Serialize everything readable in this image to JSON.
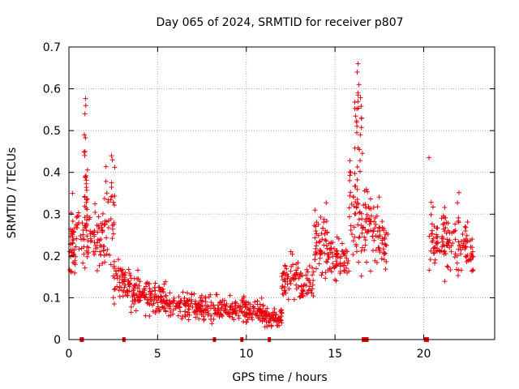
{
  "chart_data": {
    "type": "scatter",
    "title": "Day 065 of 2024, SRMTID for receiver p807",
    "xlabel": "GPS time / hours",
    "ylabel": "SRMTID / TECUs",
    "xlim": [
      0,
      24
    ],
    "ylim": [
      0,
      0.7
    ],
    "xticks": [
      0,
      5,
      10,
      15,
      20
    ],
    "yticks": [
      0,
      0.1,
      0.2,
      0.3,
      0.4,
      0.5,
      0.6,
      0.7
    ],
    "grid": true,
    "marker": "+",
    "color": "#e8000b",
    "clusters": [
      {
        "x": [
          0.0,
          0.4
        ],
        "center": 0.22,
        "spread": 0.06,
        "n": 40
      },
      {
        "x": [
          0.4,
          0.9
        ],
        "center": 0.25,
        "spread": 0.05,
        "n": 25
      },
      {
        "x": [
          0.85,
          1.05
        ],
        "center": 0.38,
        "spread": 0.15,
        "n": 28
      },
      {
        "x": [
          1.0,
          2.0
        ],
        "center": 0.24,
        "spread": 0.06,
        "n": 60
      },
      {
        "x": [
          2.0,
          2.6
        ],
        "center": 0.3,
        "spread": 0.09,
        "n": 35
      },
      {
        "x": [
          2.5,
          3.5
        ],
        "center": 0.14,
        "spread": 0.04,
        "n": 60
      },
      {
        "x": [
          3.5,
          4.6
        ],
        "center": 0.11,
        "spread": 0.035,
        "n": 70
      },
      {
        "x": [
          4.6,
          5.5
        ],
        "center": 0.1,
        "spread": 0.035,
        "n": 60
      },
      {
        "x": [
          5.5,
          7.5
        ],
        "center": 0.08,
        "spread": 0.025,
        "n": 110
      },
      {
        "x": [
          7.5,
          9.5
        ],
        "center": 0.07,
        "spread": 0.025,
        "n": 100
      },
      {
        "x": [
          9.5,
          11.0
        ],
        "center": 0.07,
        "spread": 0.025,
        "n": 90
      },
      {
        "x": [
          11.0,
          12.0
        ],
        "center": 0.05,
        "spread": 0.02,
        "n": 60
      },
      {
        "x": [
          12.0,
          13.0
        ],
        "center": 0.15,
        "spread": 0.04,
        "n": 55
      },
      {
        "x": [
          13.0,
          13.8
        ],
        "center": 0.13,
        "spread": 0.035,
        "n": 45
      },
      {
        "x": [
          13.8,
          14.6
        ],
        "center": 0.24,
        "spread": 0.07,
        "n": 55
      },
      {
        "x": [
          14.6,
          15.8
        ],
        "center": 0.19,
        "spread": 0.04,
        "n": 65
      },
      {
        "x": [
          15.8,
          16.6
        ],
        "center": 0.3,
        "spread": 0.1,
        "n": 55
      },
      {
        "x": [
          16.1,
          16.5
        ],
        "center": 0.52,
        "spread": 0.08,
        "n": 22
      },
      {
        "x": [
          16.6,
          17.5
        ],
        "center": 0.27,
        "spread": 0.07,
        "n": 55
      },
      {
        "x": [
          17.5,
          18.0
        ],
        "center": 0.24,
        "spread": 0.05,
        "n": 30
      },
      {
        "x": [
          20.3,
          21.1
        ],
        "center": 0.23,
        "spread": 0.06,
        "n": 45
      },
      {
        "x": [
          21.1,
          22.0
        ],
        "center": 0.24,
        "spread": 0.07,
        "n": 55
      },
      {
        "x": [
          22.0,
          22.8
        ],
        "center": 0.22,
        "spread": 0.05,
        "n": 45
      }
    ],
    "spikes": [
      {
        "x": 0.95,
        "y": 0.56
      },
      {
        "x": 0.9,
        "y": 0.54
      },
      {
        "x": 0.87,
        "y": 0.49
      },
      {
        "x": 2.4,
        "y": 0.44
      },
      {
        "x": 2.45,
        "y": 0.43
      },
      {
        "x": 16.3,
        "y": 0.66
      },
      {
        "x": 16.25,
        "y": 0.64
      },
      {
        "x": 16.35,
        "y": 0.61
      },
      {
        "x": 16.3,
        "y": 0.59
      },
      {
        "x": 20.3,
        "y": 0.435
      },
      {
        "x": 0.2,
        "y": 0.35
      }
    ],
    "baseline_markers_x": [
      0.7,
      0.75,
      3.1,
      8.2,
      9.75,
      11.3,
      16.6,
      16.7,
      16.8,
      20.1,
      20.2
    ]
  }
}
